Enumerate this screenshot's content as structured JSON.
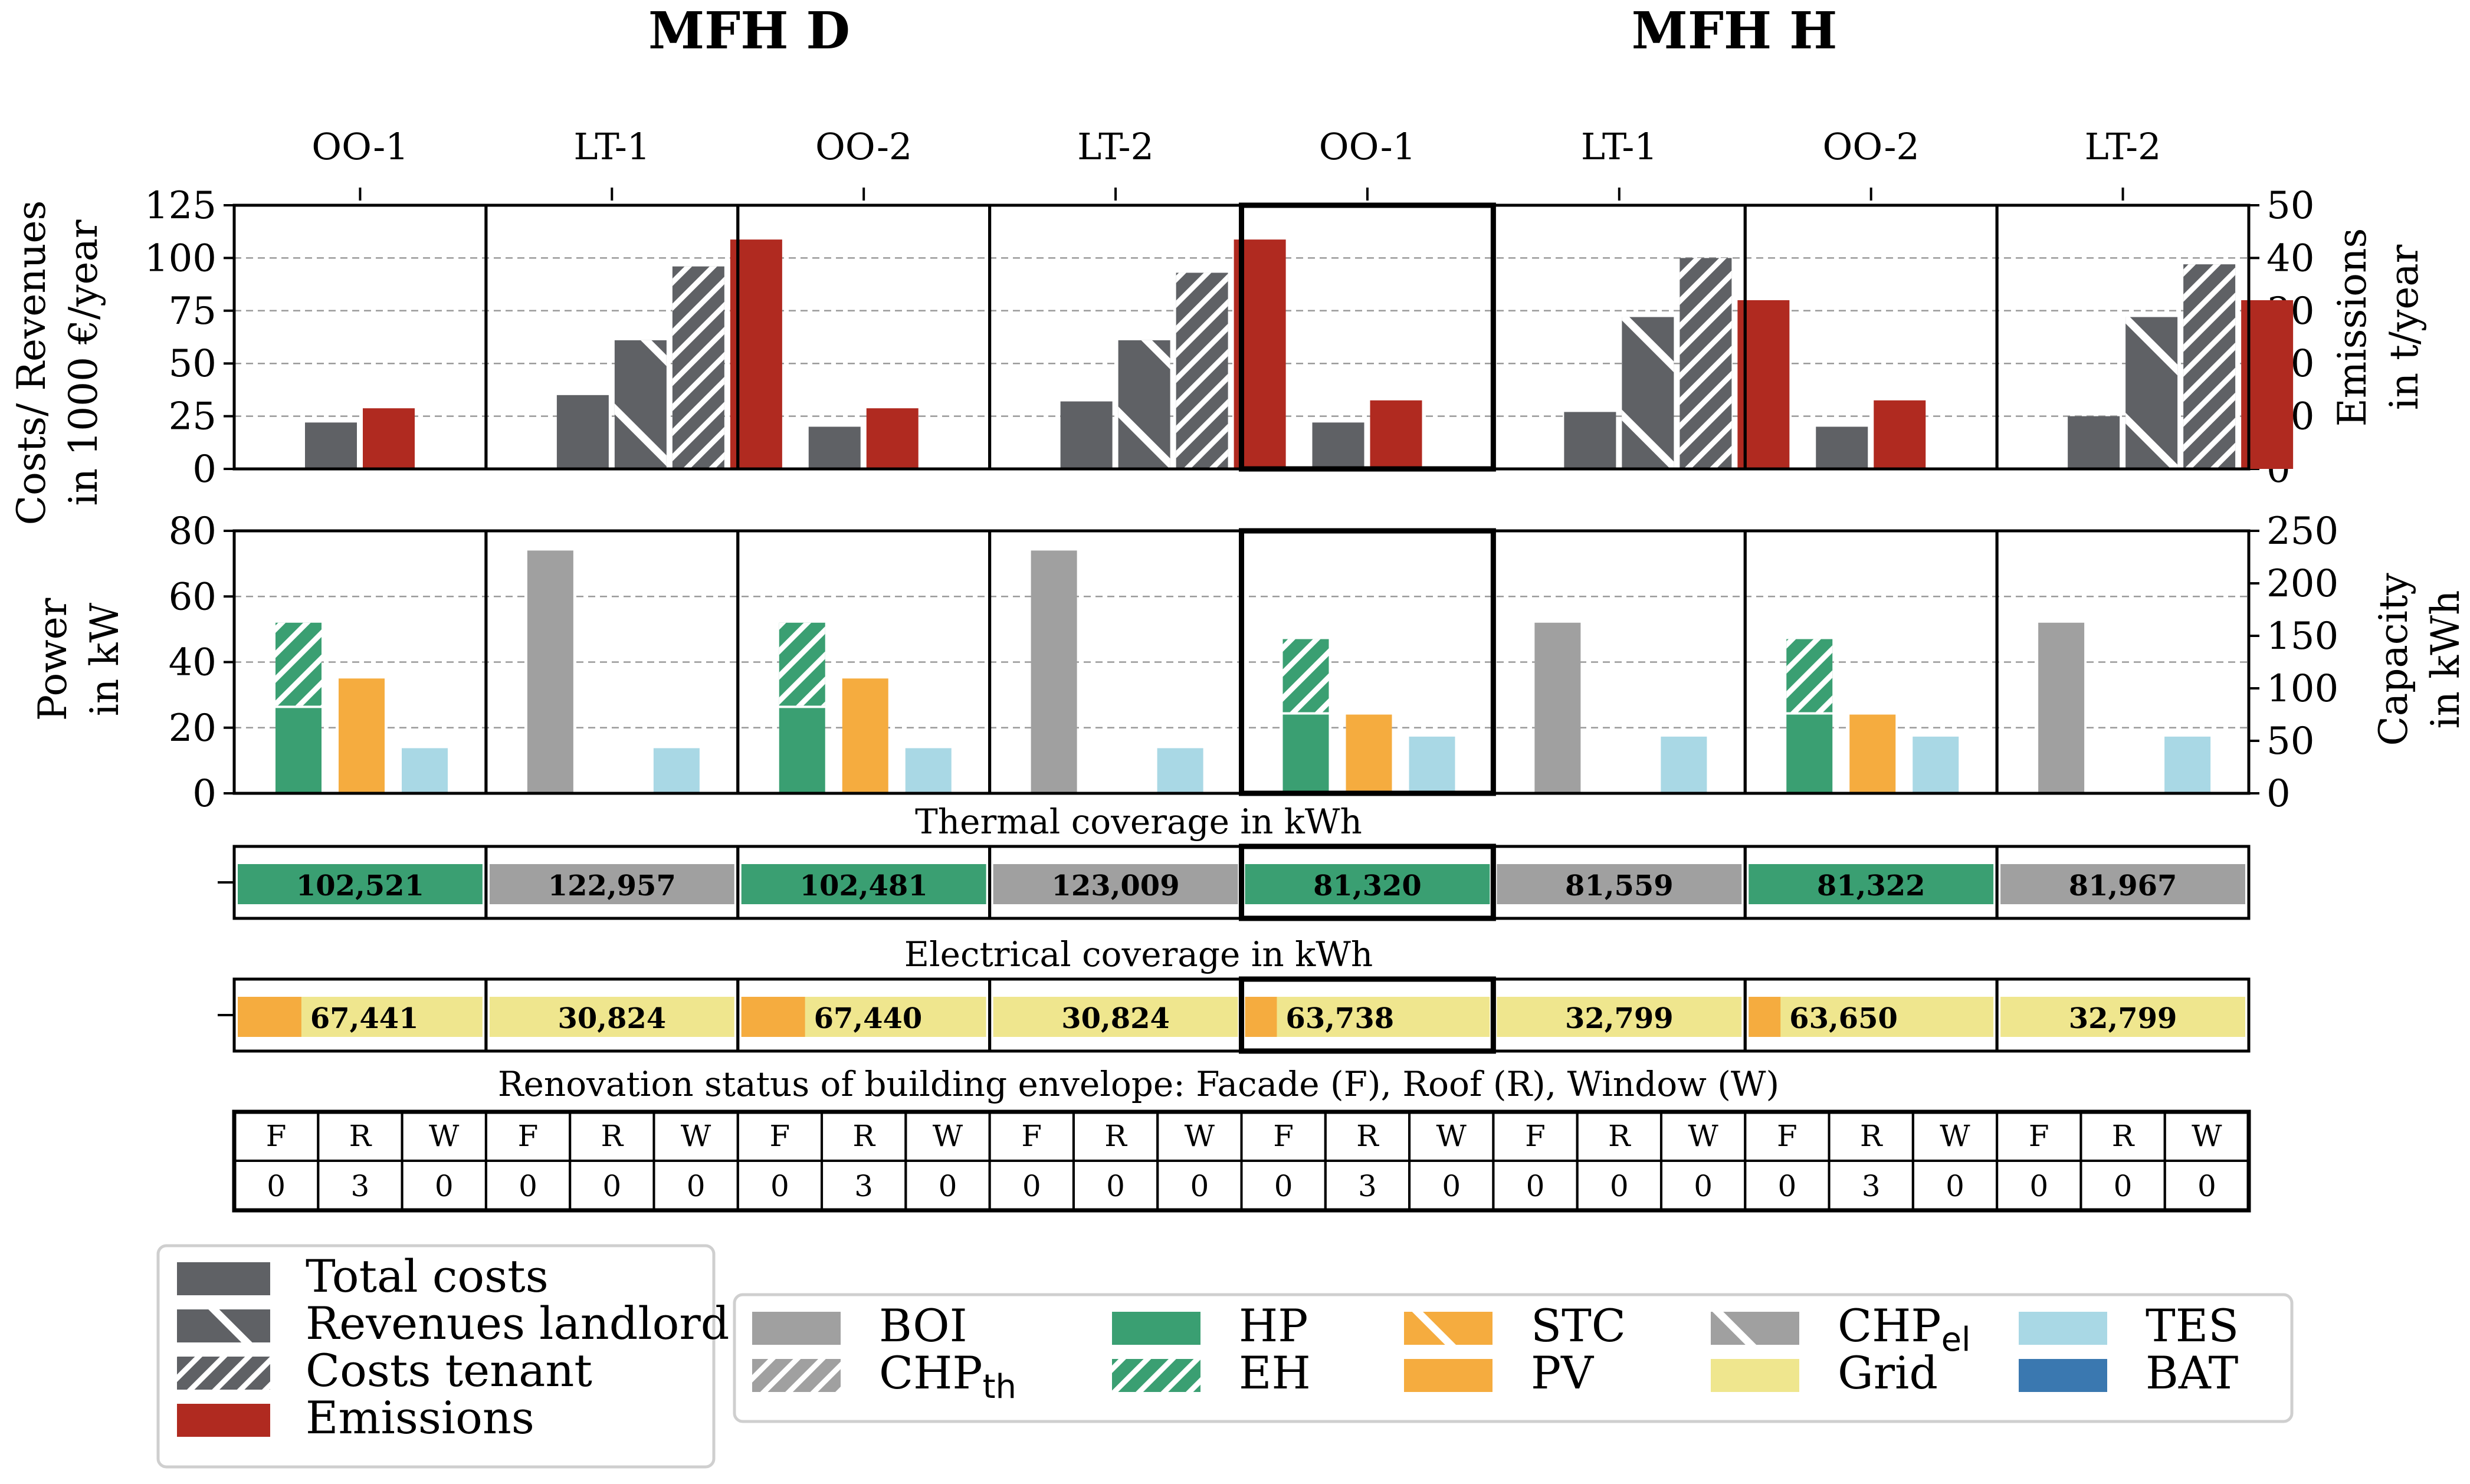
{
  "chart_data": {
    "type": "bar",
    "titles": [
      "MFH D",
      "MFH H"
    ],
    "scenarios": [
      "OO-1",
      "LT-1",
      "OO-2",
      "LT-2",
      "OO-1",
      "LT-1",
      "OO-2",
      "LT-2"
    ],
    "panel_costs": {
      "ylabel": [
        "Costs/ Revenues",
        "in 1000 €/year"
      ],
      "y2label": [
        "Emissions",
        "in t/year"
      ],
      "ylim": [
        0,
        125
      ],
      "y2lim": [
        0,
        50
      ],
      "yticks": [
        "0",
        "25",
        "50",
        "75",
        "100",
        "125"
      ],
      "y2ticks": [
        "0",
        "10",
        "20",
        "30",
        "40",
        "50"
      ],
      "series": [
        {
          "name": "Total costs",
          "axis": "left",
          "values": [
            22,
            35,
            20,
            32,
            22,
            27,
            20,
            25
          ]
        },
        {
          "name": "Revenues landlord",
          "axis": "left",
          "values": [
            0,
            61,
            0,
            61,
            0,
            72,
            0,
            72
          ]
        },
        {
          "name": "Costs tenant",
          "axis": "left",
          "values": [
            0,
            96,
            0,
            93,
            0,
            100,
            0,
            97
          ]
        },
        {
          "name": "Emissions",
          "axis": "right",
          "values": [
            11.5,
            43.5,
            11.5,
            43.5,
            13,
            32,
            13,
            32
          ]
        }
      ]
    },
    "panel_power": {
      "ylabel": [
        "Power",
        "in kW"
      ],
      "y2label": [
        "Capacity",
        "in kWh"
      ],
      "ylim": [
        0,
        80
      ],
      "y2lim": [
        0,
        250
      ],
      "yticks": [
        "0",
        "20",
        "40",
        "60",
        "80"
      ],
      "y2ticks": [
        "0",
        "50",
        "100",
        "150",
        "200",
        "250"
      ],
      "series": [
        {
          "name": "BOI",
          "axis": "left",
          "values": [
            0,
            74,
            0,
            74,
            0,
            52,
            0,
            52
          ]
        },
        {
          "name": "HP",
          "axis": "left",
          "values": [
            26,
            0,
            26,
            0,
            24,
            0,
            24,
            0
          ]
        },
        {
          "name": "EH",
          "axis": "left",
          "values": [
            26,
            0,
            26,
            0,
            23,
            0,
            23,
            0
          ]
        },
        {
          "name": "PV",
          "axis": "left",
          "values": [
            35,
            0,
            35,
            0,
            24,
            0,
            24,
            0
          ]
        },
        {
          "name": "TES",
          "axis": "right",
          "values": [
            43,
            43,
            43,
            43,
            54,
            54,
            54,
            54
          ]
        }
      ]
    },
    "thermal": {
      "title": "Thermal coverage in kWh",
      "labels": [
        "102,521",
        "122,957",
        "102,481",
        "123,009",
        "81,320",
        "81,559",
        "81,322",
        "81,967"
      ],
      "sources": [
        "HP",
        "BOI",
        "HP",
        "BOI",
        "HP",
        "BOI",
        "HP",
        "BOI"
      ]
    },
    "electrical": {
      "title": "Electrical coverage in kWh",
      "labels": [
        "67,441",
        "30,824",
        "67,440",
        "30,824",
        "63,738",
        "32,799",
        "63,650",
        "32,799"
      ],
      "pv_share": [
        0.26,
        0,
        0.26,
        0,
        0.13,
        0,
        0.13,
        0
      ]
    },
    "renovation": {
      "title": "Renovation status of building envelope: Facade (F), Roof (R), Window (W)",
      "headers": [
        "F",
        "R",
        "W"
      ],
      "values": [
        [
          0,
          3,
          0
        ],
        [
          0,
          0,
          0
        ],
        [
          0,
          3,
          0
        ],
        [
          0,
          0,
          0
        ],
        [
          0,
          3,
          0
        ],
        [
          0,
          0,
          0
        ],
        [
          0,
          3,
          0
        ],
        [
          0,
          0,
          0
        ]
      ]
    },
    "legend_costs": [
      {
        "label": "Total costs",
        "color": "#5f6165",
        "pattern": "solid"
      },
      {
        "label": "Revenues landlord",
        "color": "#5f6165",
        "pattern": "backslash"
      },
      {
        "label": "Costs tenant",
        "color": "#5f6165",
        "pattern": "slash"
      },
      {
        "label": "Emissions",
        "color": "#b02a20",
        "pattern": "solid"
      }
    ],
    "legend_tech": [
      {
        "label": "BOI",
        "sub": "",
        "color": "#a0a0a0",
        "pattern": "solid"
      },
      {
        "label": "CHP",
        "sub": "th",
        "color": "#a0a0a0",
        "pattern": "slash"
      },
      {
        "label": "HP",
        "sub": "",
        "color": "#3a9f72",
        "pattern": "solid"
      },
      {
        "label": "EH",
        "sub": "",
        "color": "#3a9f72",
        "pattern": "slash"
      },
      {
        "label": "STC",
        "sub": "",
        "color": "#f5ac3f",
        "pattern": "backslash"
      },
      {
        "label": "PV",
        "sub": "",
        "color": "#f5ac3f",
        "pattern": "solid"
      },
      {
        "label": "CHP",
        "sub": "el",
        "color": "#a0a0a0",
        "pattern": "backslash"
      },
      {
        "label": "Grid",
        "sub": "",
        "color": "#efe68e",
        "pattern": "solid"
      },
      {
        "label": "TES",
        "sub": "",
        "color": "#a9d8e5",
        "pattern": "solid"
      },
      {
        "label": "BAT",
        "sub": "",
        "color": "#3a78b0",
        "pattern": "solid"
      }
    ],
    "colors": {
      "total": "#5f6165",
      "emission": "#b02a20",
      "boi": "#a0a0a0",
      "hp": "#3a9f72",
      "pv": "#f5ac3f",
      "grid": "#efe68e",
      "tes": "#a9d8e5",
      "bat": "#3a78b0"
    }
  }
}
